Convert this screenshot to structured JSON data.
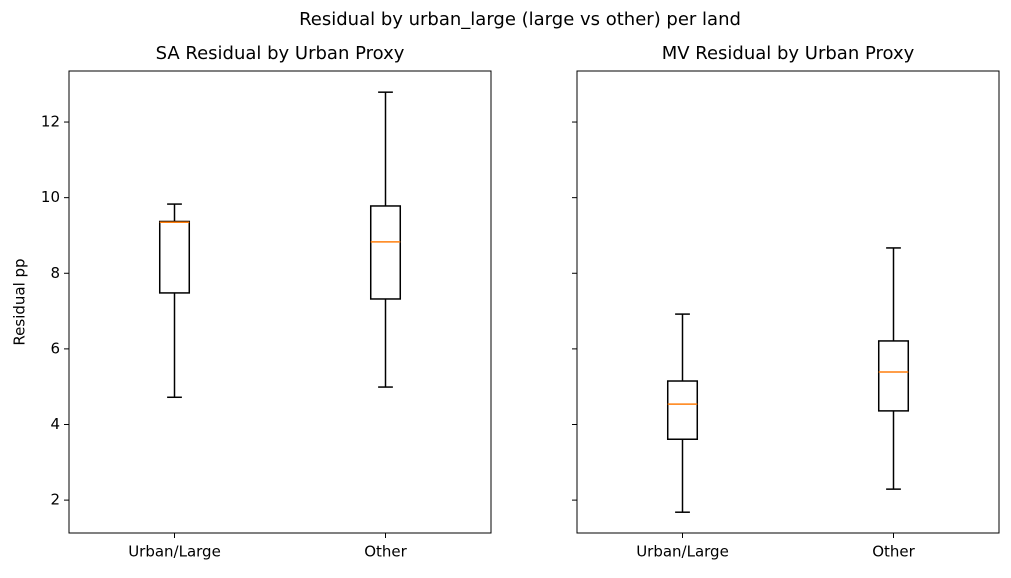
{
  "title": "Residual by urban_large (large vs other) per land",
  "chart_data": [
    {
      "type": "box",
      "title": "SA Residual by Urban Proxy",
      "ylabel": "Residual pp",
      "categories": [
        "Urban/Large",
        "Other"
      ],
      "boxes": [
        {
          "whislo": 4.72,
          "q1": 7.48,
          "med": 9.35,
          "q3": 9.37,
          "whishi": 9.83
        },
        {
          "whislo": 4.99,
          "q1": 7.32,
          "med": 8.83,
          "q3": 9.78,
          "whishi": 12.79
        }
      ],
      "box_color": "#000000",
      "median_color": "#ff7f0e",
      "ylim": [
        1.13,
        13.35
      ],
      "yticks": [
        2,
        4,
        6,
        8,
        10,
        12
      ],
      "show_ytick_labels": true
    },
    {
      "type": "box",
      "title": "MV Residual by Urban Proxy",
      "categories": [
        "Urban/Large",
        "Other"
      ],
      "boxes": [
        {
          "whislo": 1.68,
          "q1": 3.61,
          "med": 4.54,
          "q3": 5.15,
          "whishi": 6.92
        },
        {
          "whislo": 2.29,
          "q1": 4.36,
          "med": 5.39,
          "q3": 6.21,
          "whishi": 8.67
        }
      ],
      "box_color": "#000000",
      "median_color": "#ff7f0e",
      "ylim": [
        1.13,
        13.35
      ],
      "yticks": [
        2,
        4,
        6,
        8,
        10,
        12
      ],
      "show_ytick_labels": false
    }
  ]
}
